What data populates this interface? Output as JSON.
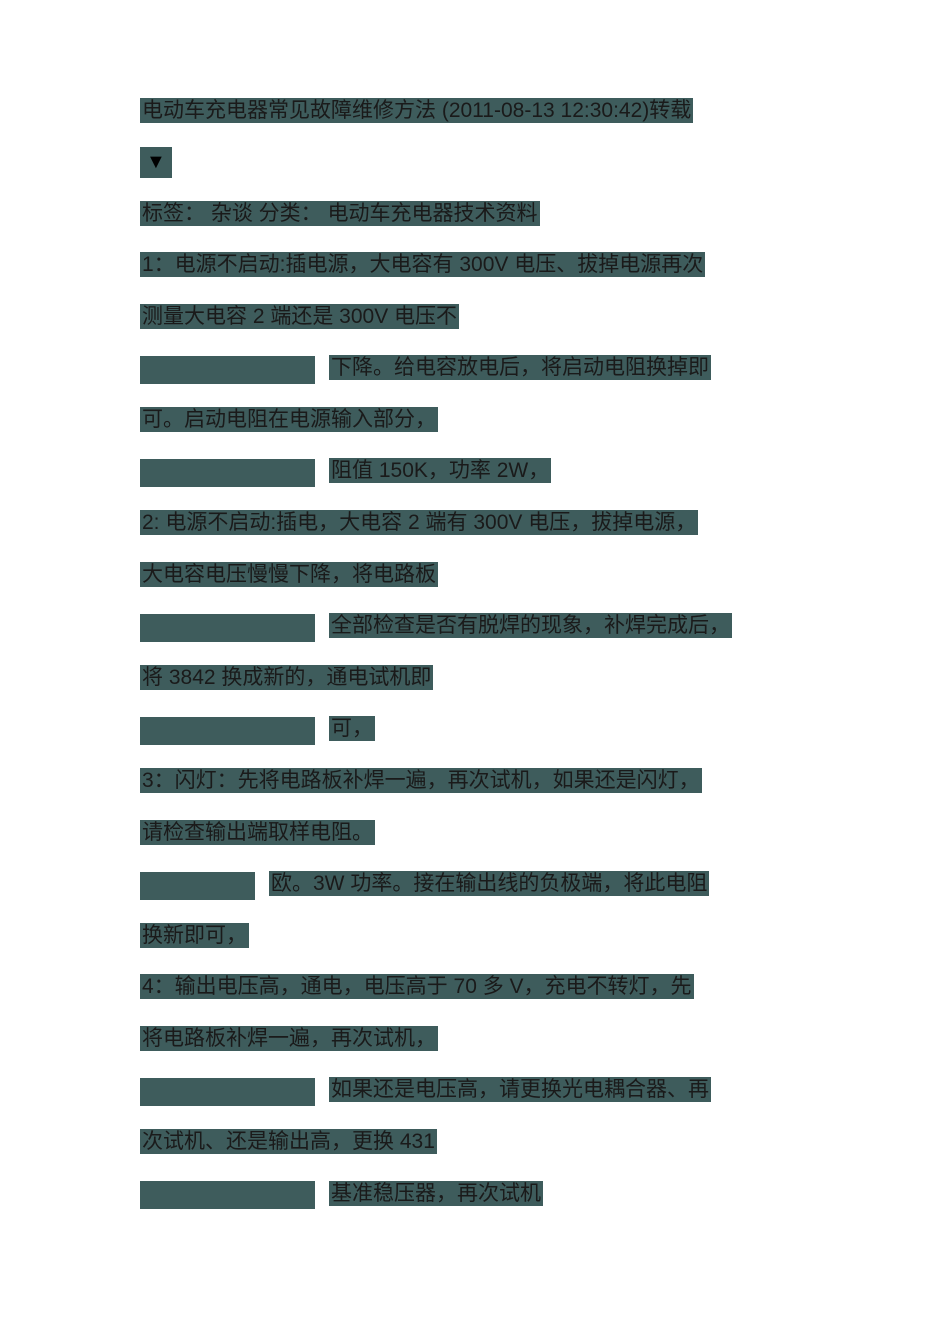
{
  "colors": {
    "highlight_bg": "#3e5c5c",
    "text": "#1a1a1a",
    "page_bg": "#ffffff",
    "triangle": "#000000"
  },
  "typography": {
    "font_family": "Microsoft YaHei, SimSun, sans-serif",
    "font_size_pt": 16
  },
  "title": "电动车充电器常见故障维修方法  (2011-08-13  12:30:42)转载",
  "triangle_glyph": "▼",
  "tags_line": "标签：  杂谈    分类：  电动车充电器技术资料",
  "item1_l1": "1：电源不启动:插电源，大电容有 300V 电压、拔掉电源再次",
  "item1_l2": "测量大电容 2 端还是 300V 电压不",
  "item1_l3": "下降。给电容放电后，将启动电阻换掉即",
  "item1_l4": "可。启动电阻在电源输入部分，",
  "item1_l5": "阻值 150K，功率 2W，",
  "item2_l1": "2:  电源不启动:插电，大电容 2 端有 300V 电压，拔掉电源，",
  "item2_l2": "大电容电压慢慢下降，将电路板",
  "item2_l3": "全部检查是否有脱焊的现象，补焊完成后，",
  "item2_l4": "将 3842 换成新的，通电试机即",
  "item2_l5": "可，",
  "item3_l1": "3：闪灯：先将电路板补焊一遍，再次试机，如果还是闪灯，",
  "item3_l2": "请检查输出端取样电阻。",
  "item3_l3": "欧。3W 功率。接在输出线的负极端，将此电阻",
  "item3_l4": "换新即可，",
  "item4_l1": "4：输出电压高，通电，电压高于 70 多 V，充电不转灯，先",
  "item4_l2": "将电路板补焊一遍，再次试机，",
  "item4_l3": "如果还是电压高，请更换光电耦合器、再",
  "item4_l4": "次试机、还是输出高，更换 431",
  "item4_l5": "基准稳压器，再次试机"
}
